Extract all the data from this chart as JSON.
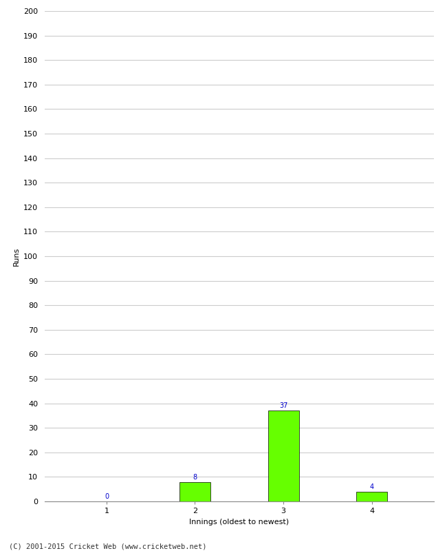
{
  "xlabel": "Innings (oldest to newest)",
  "ylabel": "Runs",
  "categories": [
    1,
    2,
    3,
    4
  ],
  "values": [
    0,
    8,
    37,
    4
  ],
  "bar_color": "#66ff00",
  "bar_edge_color": "#000000",
  "ylim": [
    0,
    200
  ],
  "ytick_step": 10,
  "label_color": "#0000cc",
  "label_fontsize": 7,
  "axis_fontsize": 8,
  "tick_fontsize": 8,
  "footer_text": "(C) 2001-2015 Cricket Web (www.cricketweb.net)",
  "footer_fontsize": 7.5,
  "background_color": "#ffffff",
  "grid_color": "#cccccc",
  "bar_width": 0.35
}
